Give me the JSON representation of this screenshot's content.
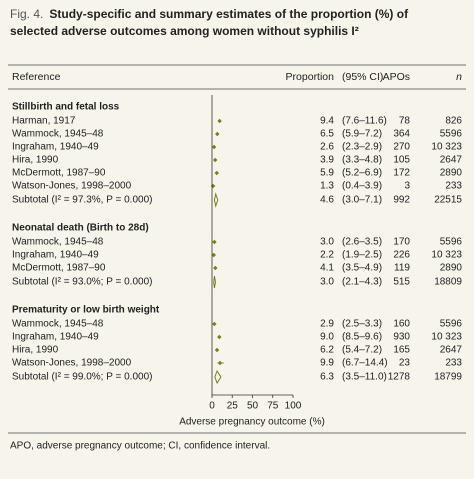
{
  "chart_data": {
    "type": "forest",
    "figure_label": "Fig. 4.",
    "title": "Study-specific and summary estimates of the proportion (%) of selected adverse outcomes among women without syphilis I²",
    "columns": [
      "Reference",
      "Proportion",
      "(95% CI)",
      "APOs",
      "n"
    ],
    "color": "#7a7d1c",
    "xlim": [
      0,
      100
    ],
    "xticks": [
      0,
      25,
      50,
      75,
      100
    ],
    "xlabel": "Adverse pregnancy outcome (%)",
    "footnote": "APO, adverse pregnancy outcome; CI, confidence interval.",
    "groups": [
      {
        "name": "Stillbirth and fetal loss",
        "studies": [
          {
            "reference": "Harman, 1917",
            "proportion": 9.4,
            "ci_low": 7.6,
            "ci_high": 11.6,
            "ci_label": "(7.6–11.6)",
            "apos": 78,
            "n": 826
          },
          {
            "reference": "Wammock, 1945–48",
            "proportion": 6.5,
            "ci_low": 5.9,
            "ci_high": 7.2,
            "ci_label": "(5.9–7.2)",
            "apos": 364,
            "n": 5596
          },
          {
            "reference": "Ingraham, 1940–49",
            "proportion": 2.6,
            "ci_low": 2.3,
            "ci_high": 2.9,
            "ci_label": "(2.3–2.9)",
            "apos": 270,
            "n": {
              "value": 10323,
              "label": "10 323"
            }
          },
          {
            "reference": "Hira, 1990",
            "proportion": 3.9,
            "ci_low": 3.3,
            "ci_high": 4.8,
            "ci_label": "(3.3–4.8)",
            "apos": 105,
            "n": 2647
          },
          {
            "reference": "McDermott, 1987–90",
            "proportion": 5.9,
            "ci_low": 5.2,
            "ci_high": 6.9,
            "ci_label": "(5.2–6.9)",
            "apos": 172,
            "n": 2890
          },
          {
            "reference": "Watson-Jones, 1998–2000",
            "proportion": 1.3,
            "ci_low": 0.4,
            "ci_high": 3.9,
            "ci_label": "(0.4–3.9)",
            "apos": 3,
            "n": 233
          }
        ],
        "subtotal": {
          "reference": "Subtotal (I² = 97.3%, P = 0.000)",
          "proportion": 4.6,
          "ci_low": 3.0,
          "ci_high": 7.1,
          "ci_label": "(3.0–7.1)",
          "apos": 992,
          "n": 22515
        }
      },
      {
        "name": "Neonatal death (Birth to 28d)",
        "studies": [
          {
            "reference": "Wammock, 1945–48",
            "proportion": {
              "value": 3,
              "label": "3.0"
            },
            "ci_low": 2.6,
            "ci_high": 3.5,
            "ci_label": "(2.6–3.5)",
            "apos": 170,
            "n": 5596
          },
          {
            "reference": "Ingraham, 1940–49",
            "proportion": 2.2,
            "ci_low": 1.9,
            "ci_high": 2.5,
            "ci_label": "(1.9–2.5)",
            "apos": 226,
            "n": {
              "value": 10323,
              "label": "10 323"
            }
          },
          {
            "reference": "McDermott, 1987–90",
            "proportion": 4.1,
            "ci_low": 3.5,
            "ci_high": 4.9,
            "ci_label": "(3.5–4.9)",
            "apos": 119,
            "n": 2890
          }
        ],
        "subtotal": {
          "reference": "Subtotal (I² = 93.0%; P = 0.000)",
          "proportion": {
            "value": 3,
            "label": "3.0"
          },
          "ci_low": 2.1,
          "ci_high": 4.3,
          "ci_label": "(2.1–4.3)",
          "apos": 515,
          "n": 18809
        }
      },
      {
        "name": "Prematurity or low birth weight",
        "studies": [
          {
            "reference": "Wammock, 1945–48",
            "proportion": 2.9,
            "ci_low": 2.5,
            "ci_high": 3.3,
            "ci_label": "(2.5–3.3)",
            "apos": 160,
            "n": 5596
          },
          {
            "reference": "Ingraham, 1940–49",
            "proportion": {
              "value": 9,
              "label": "9.0"
            },
            "ci_low": 8.5,
            "ci_high": 9.6,
            "ci_label": "(8.5–9.6)",
            "apos": 930,
            "n": {
              "value": 10323,
              "label": "10 323"
            }
          },
          {
            "reference": "Hira, 1990",
            "proportion": 6.2,
            "ci_low": 5.4,
            "ci_high": 7.2,
            "ci_label": "(5.4–7.2)",
            "apos": 165,
            "n": 2647
          },
          {
            "reference": "Watson-Jones, 1998–2000",
            "proportion": 9.9,
            "ci_low": 6.7,
            "ci_high": 14.4,
            "ci_label": "(6.7–14.4)",
            "apos": 23,
            "n": 233
          }
        ],
        "subtotal": {
          "reference": "Subtotal (I² = 99.0%; P = 0.000)",
          "proportion": 6.3,
          "ci_low": 3.5,
          "ci_high": 11.0,
          "ci_label": "(3.5–11.0)",
          "apos": 1278,
          "n": 18799
        }
      }
    ]
  }
}
